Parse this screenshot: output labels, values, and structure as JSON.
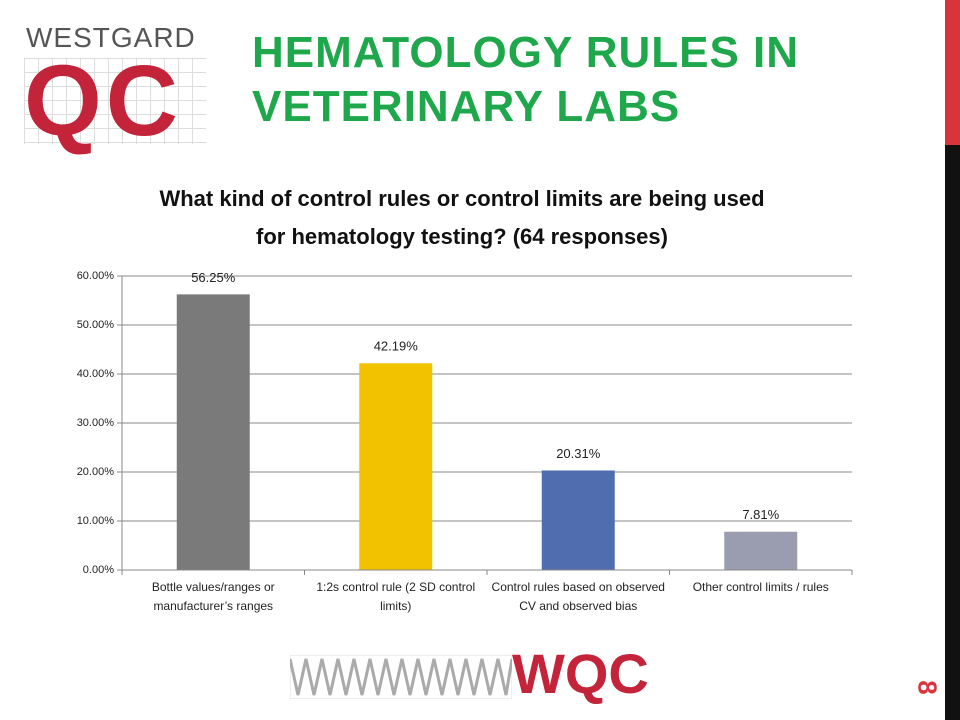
{
  "slide": {
    "logo_top": "WESTGARD",
    "logo_main": "QC",
    "heading": "HEMATOLOGY RULES IN VETERINARY LABS",
    "page_number": "8",
    "logo_bottom": "WQC"
  },
  "chart_data": {
    "type": "bar",
    "title": "What kind of control rules or control limits are being used for hematology testing? (64 responses)",
    "categories": [
      "Bottle values/ranges or manufacturer’s ranges",
      "1:2s control rule (2 SD control limits)",
      "Control rules based on observed CV and observed bias",
      "Other control limits / rules"
    ],
    "values": [
      56.25,
      42.19,
      20.31,
      7.81
    ],
    "value_labels": [
      "56.25%",
      "42.19%",
      "20.31%",
      "7.81%"
    ],
    "colors": [
      "#7a7a7a",
      "#f2c200",
      "#506db0",
      "#9a9daf"
    ],
    "ylim": [
      0,
      60
    ],
    "yticks": [
      {
        "value": 0,
        "label": "0.00%"
      },
      {
        "value": 10,
        "label": "10.00%"
      },
      {
        "value": 20,
        "label": "20.00%"
      },
      {
        "value": 30,
        "label": "30.00%"
      },
      {
        "value": 40,
        "label": "40.00%"
      },
      {
        "value": 50,
        "label": "50.00%"
      },
      {
        "value": 60,
        "label": "60.00%"
      }
    ],
    "grid": true
  }
}
